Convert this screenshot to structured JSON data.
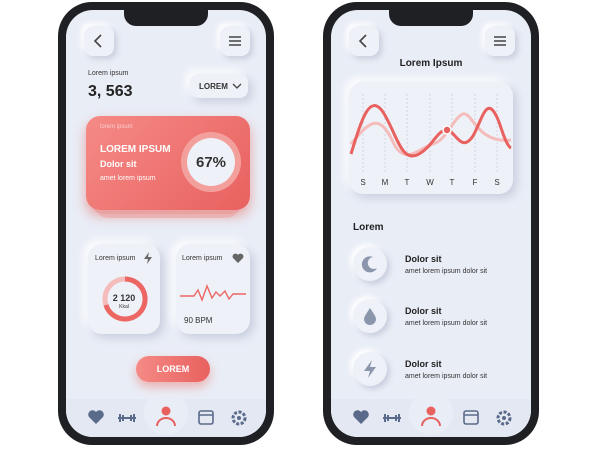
{
  "left_screen": {
    "stat_label": "Lorem ipsum",
    "stat_value": "3, 563",
    "dropdown": "LOREM",
    "hero_card": {
      "caption": "lorem ipsum",
      "title": "LOREM IPSUM",
      "subtitle": "Dolor sit",
      "text": "amet lorem ipsum",
      "percent": "67%"
    },
    "calories_card": {
      "title": "Lorem ipsum",
      "value": "2 120",
      "unit": "Kkal"
    },
    "heart_card": {
      "title": "Lorem ipsum",
      "value": "90 BPM"
    },
    "button": "LOREM"
  },
  "right_screen": {
    "title": "Lorem Ipsum",
    "weekdays": [
      "S",
      "M",
      "T",
      "W",
      "T",
      "F",
      "S"
    ],
    "section_title": "Lorem",
    "items": [
      {
        "title": "Dolor sit",
        "text": "amet lorem ipsum dolor sit"
      },
      {
        "title": "Dolor sit",
        "text": "amet lorem ipsum dolor sit"
      },
      {
        "title": "Dolor sit",
        "text": "amet lorem ipsum dolor sit"
      }
    ]
  }
}
